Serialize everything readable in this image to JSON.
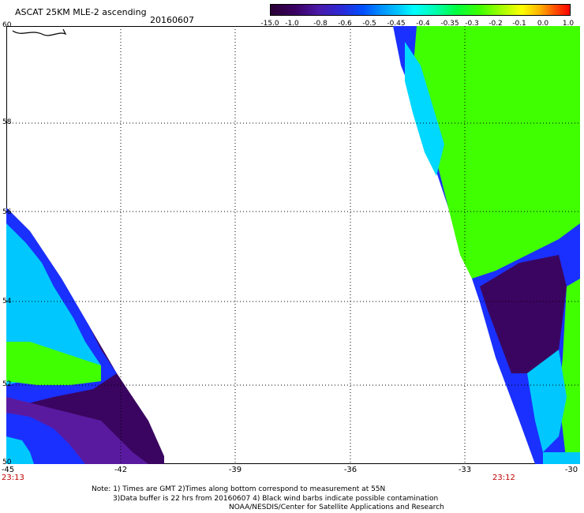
{
  "title": "ASCAT 25KM MLE-2 ascending",
  "date": "20160607",
  "colorbar": {
    "ticks": [
      "-15.0",
      "-1.0",
      "-0.8",
      "-0.6",
      "-0.5",
      "-0.45",
      "-0.4",
      "-0.35",
      "-0.3",
      "-0.2",
      "-0.1",
      "0.0",
      "1.0"
    ]
  },
  "map": {
    "lat_labels": [
      "60",
      "58",
      "56",
      "54",
      "52",
      "50"
    ],
    "lon_labels": [
      "-45",
      "-42",
      "-39",
      "-36",
      "-33",
      "-30"
    ],
    "swath_times": {
      "left": "23:13",
      "right": "23:12"
    }
  },
  "notes": {
    "line1": "Note: 1) Times are GMT 2)Times along bottom correspond to measurement at 55N",
    "line2": "3)Data buffer is 22 hrs from 20160607 4) Black wind barbs indicate possible contamination",
    "line3": "NOAA/NESDIS/Center for Satellite Applications and Research"
  },
  "colors": {
    "purple_dark": "#3a0560",
    "purple": "#5a1aa0",
    "blue": "#1a30ff",
    "cyan": "#00d8ff",
    "green": "#40ff00",
    "lime": "#90ff20"
  }
}
